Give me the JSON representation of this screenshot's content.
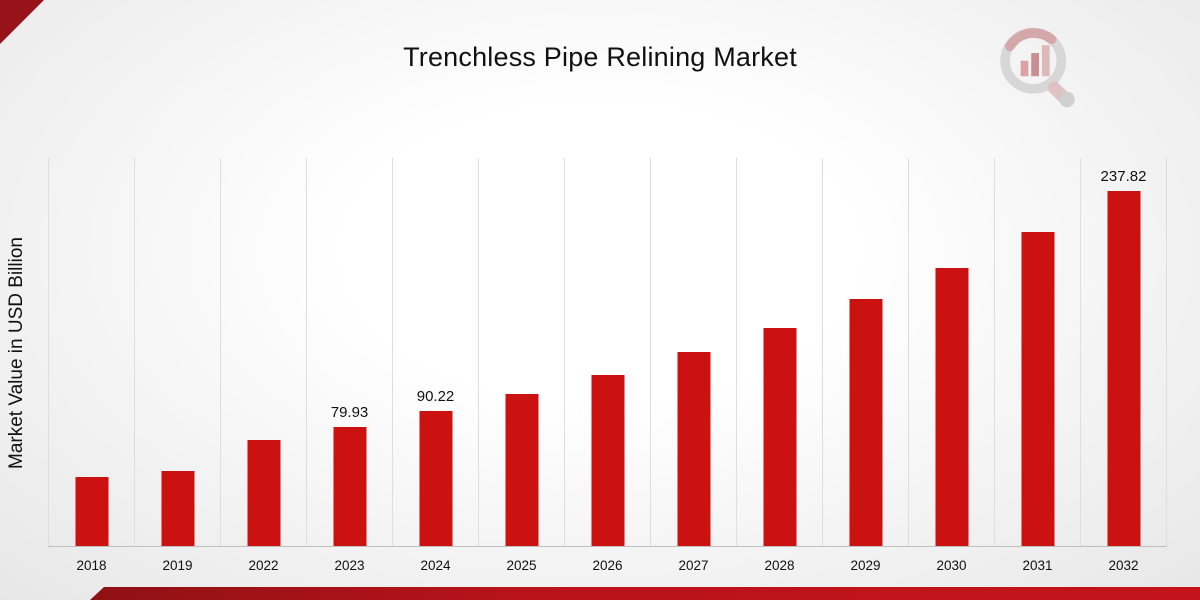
{
  "page": {
    "title": "Trenchless Pipe Relining Market"
  },
  "chart_data": {
    "type": "bar",
    "title": "Trenchless Pipe Relining Market",
    "xlabel": "",
    "ylabel": "Market Value in USD Billion",
    "categories": [
      "2018",
      "2019",
      "2022",
      "2023",
      "2024",
      "2025",
      "2026",
      "2027",
      "2028",
      "2029",
      "2030",
      "2031",
      "2032"
    ],
    "values": [
      46.3,
      50.1,
      71.2,
      79.93,
      90.22,
      101.8,
      114.9,
      129.7,
      146.4,
      165.3,
      186.6,
      210.6,
      237.82
    ],
    "labels": [
      "",
      "",
      "",
      "79.93",
      "90.22",
      "",
      "",
      "",
      "",
      "",
      "",
      "",
      "237.82"
    ],
    "bar_color": "#cc1111",
    "ylim": [
      0,
      260
    ],
    "grid": "vertical-separators-only",
    "legend": "none"
  },
  "logo": {
    "name": "market-research-chart-logo",
    "ring_color": "#d6d6d6",
    "bar_color": "#dc9ea0",
    "accent_color": "#c9898c"
  }
}
